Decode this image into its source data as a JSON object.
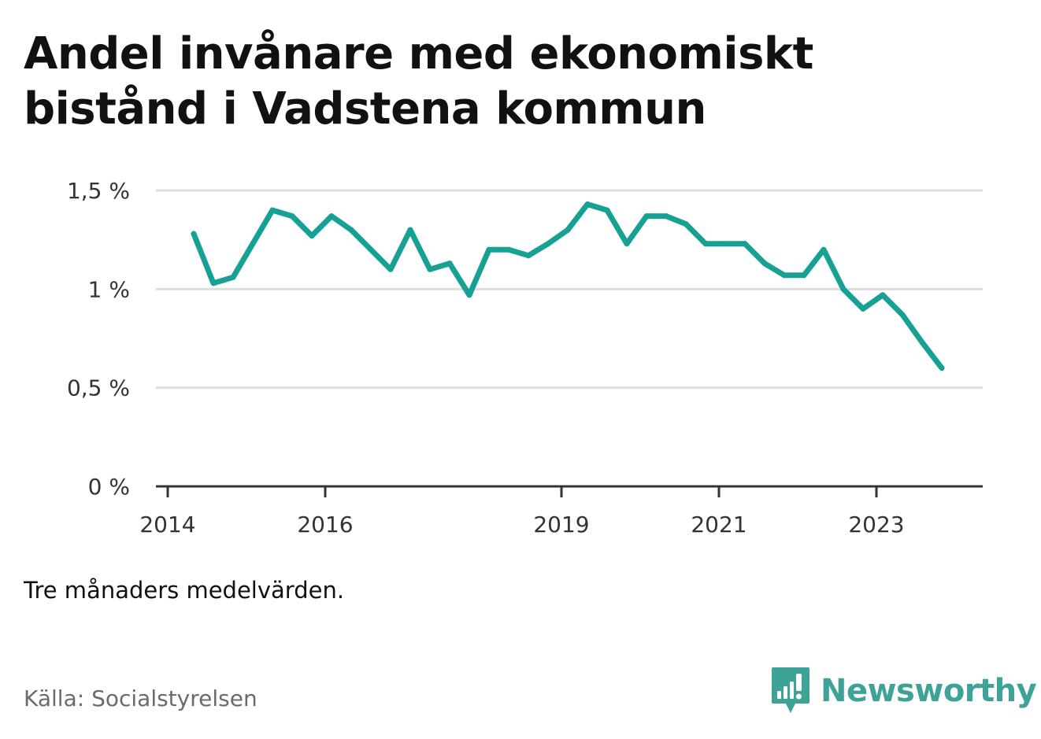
{
  "title": "Andel invånare med ekonomiskt bistånd i Vadstena kommun",
  "note": "Tre månaders medelvärden.",
  "source": "Källa: Socialstyrelsen",
  "brand": {
    "name": "Newsworthy",
    "icon": "newsworthy-logo-icon",
    "color": "#3fa296"
  },
  "chart_data": {
    "type": "line",
    "title": "Andel invånare med ekonomiskt bistånd i Vadstena kommun",
    "xlabel": "",
    "ylabel": "",
    "ylim": [
      0,
      1.5
    ],
    "xlim": [
      2014,
      2024.35
    ],
    "yticks": [
      {
        "value": 0,
        "label": "0 %"
      },
      {
        "value": 0.5,
        "label": "0,5 %"
      },
      {
        "value": 1,
        "label": "1 %"
      },
      {
        "value": 1.5,
        "label": "1,5 %"
      }
    ],
    "xticks": [
      {
        "value": 2014,
        "label": "2014"
      },
      {
        "value": 2016,
        "label": "2016"
      },
      {
        "value": 2019,
        "label": "2019"
      },
      {
        "value": 2021,
        "label": "2021"
      },
      {
        "value": 2023,
        "label": "2023"
      }
    ],
    "grid": true,
    "line_color": "#16a194",
    "series": [
      {
        "x": [
          2014.33,
          2014.58,
          2014.83,
          2015.08,
          2015.33,
          2015.58,
          2015.83,
          2016.08,
          2016.33,
          2016.58,
          2016.83,
          2017.08,
          2017.33,
          2017.58,
          2017.83,
          2018.08,
          2018.33,
          2018.58,
          2018.83,
          2019.08,
          2019.33,
          2019.58,
          2019.83,
          2020.08,
          2020.33,
          2020.58,
          2020.83,
          2021.08,
          2021.33,
          2021.58,
          2021.83,
          2022.08,
          2022.33,
          2022.58,
          2022.83,
          2023.08,
          2023.33,
          2023.58,
          2023.83
        ],
        "values": [
          1.28,
          1.03,
          1.06,
          1.23,
          1.4,
          1.37,
          1.27,
          1.37,
          1.3,
          1.2,
          1.1,
          1.3,
          1.1,
          1.13,
          0.97,
          1.2,
          1.2,
          1.17,
          1.23,
          1.3,
          1.43,
          1.4,
          1.23,
          1.37,
          1.37,
          1.33,
          1.23,
          1.23,
          1.23,
          1.13,
          1.07,
          1.07,
          1.2,
          1.0,
          0.9,
          0.97,
          0.87,
          0.73,
          0.6
        ]
      }
    ]
  }
}
